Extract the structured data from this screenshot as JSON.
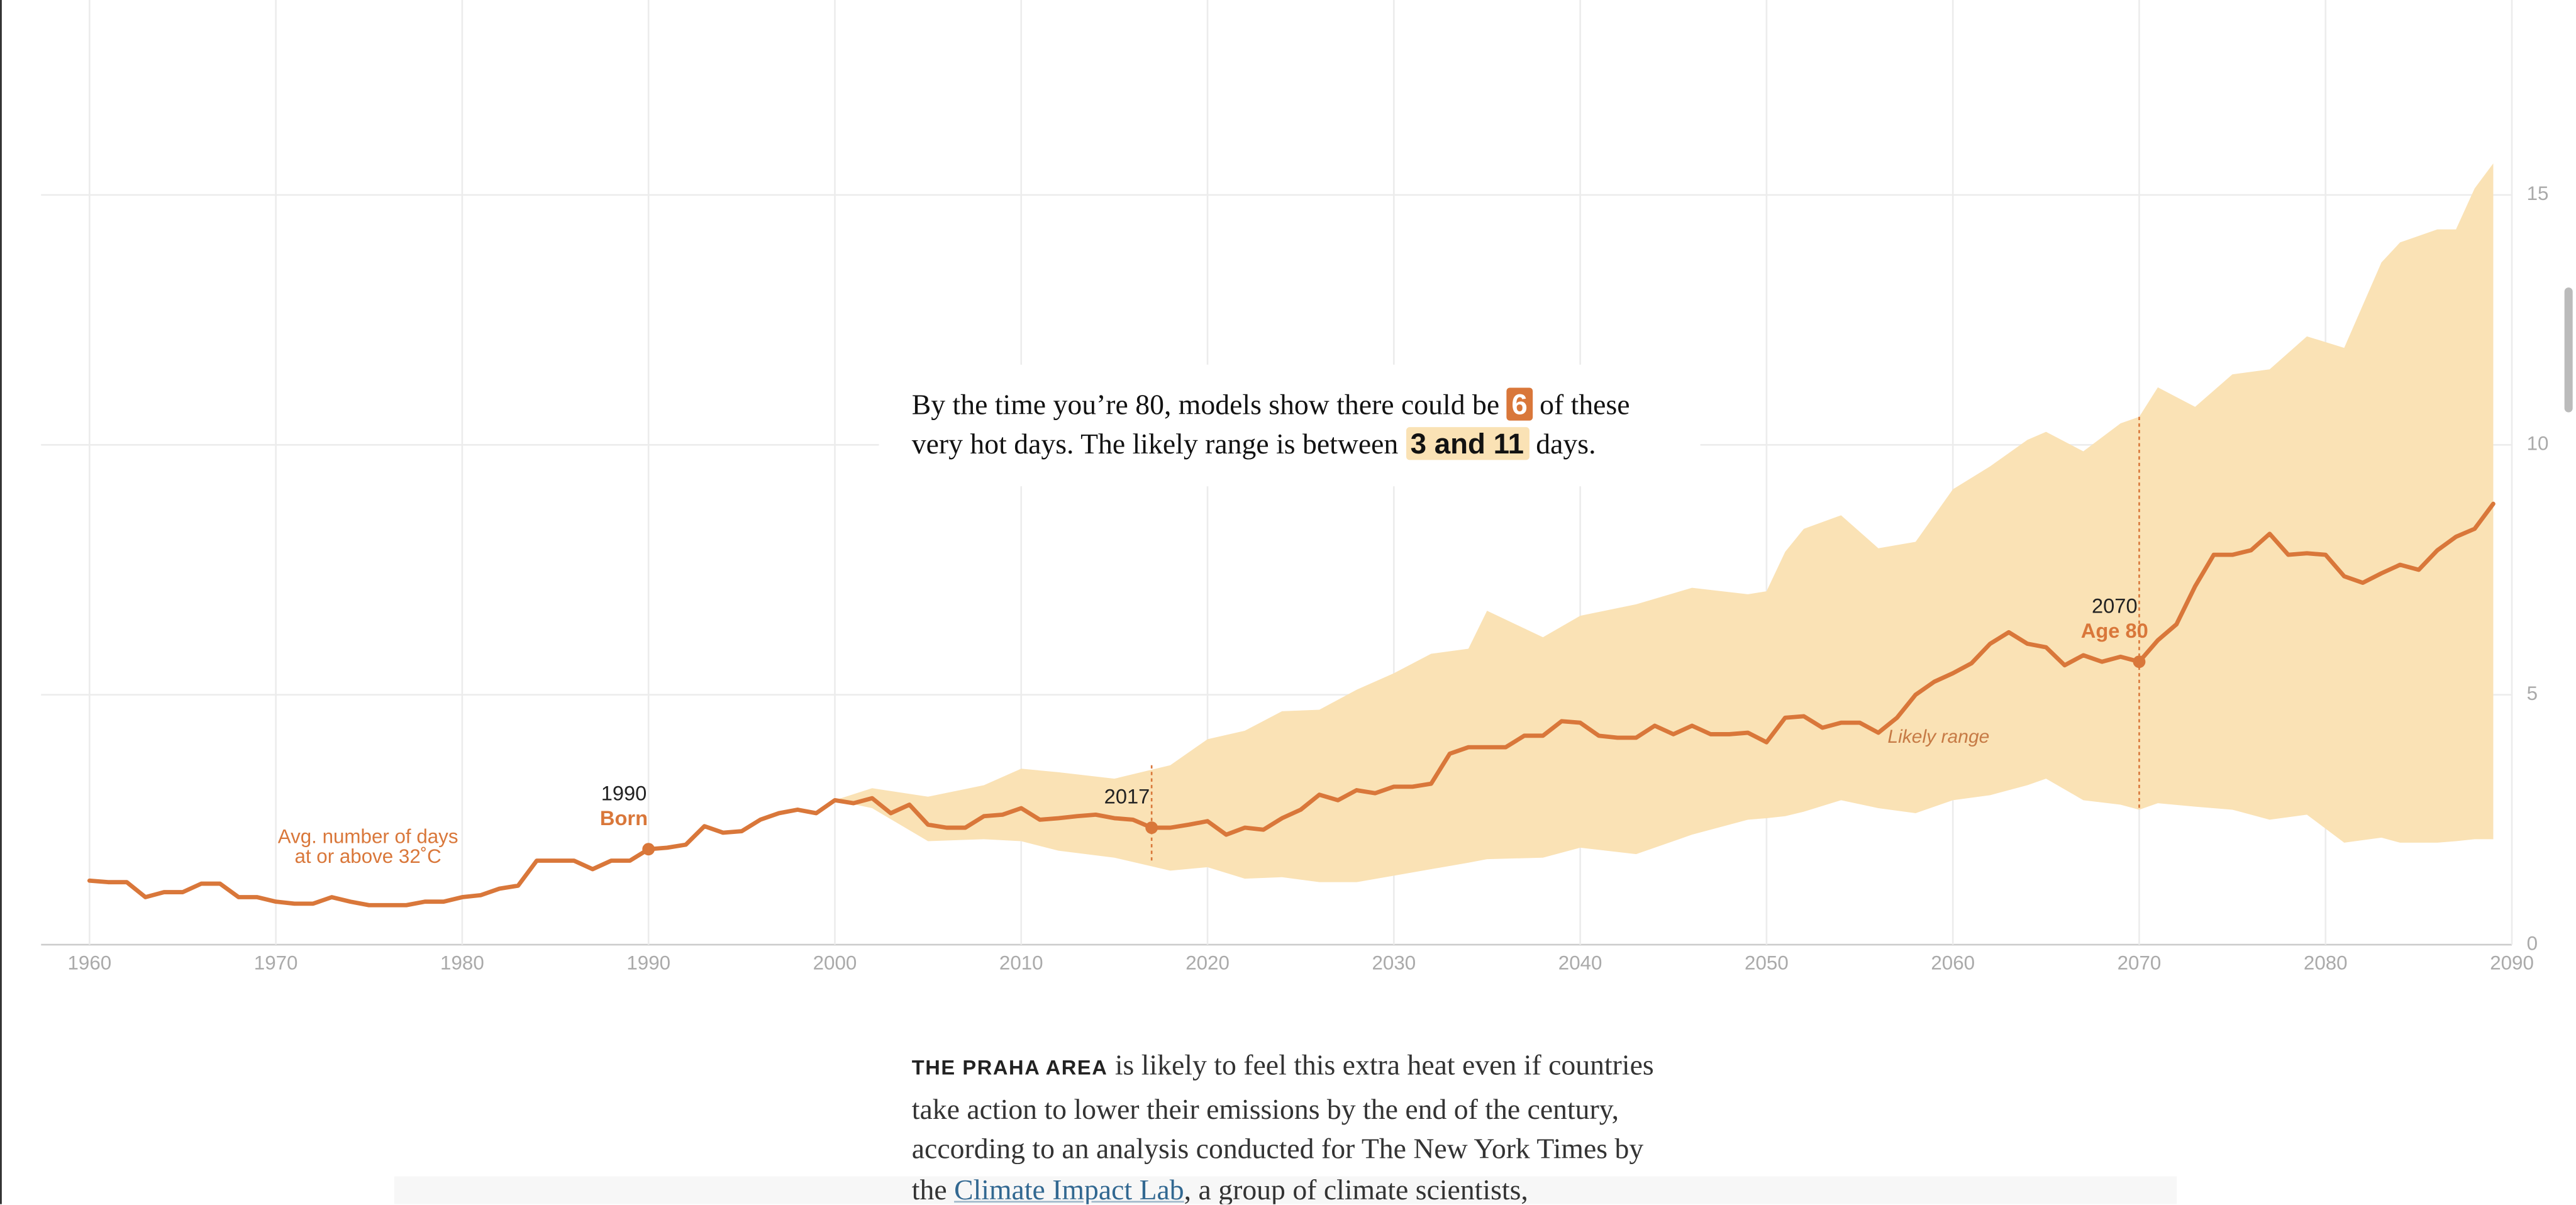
{
  "chart_data": {
    "type": "line",
    "color": "#d9773a",
    "band_color": "#fae2b5",
    "grid": true,
    "xlim": [
      1957.4,
      2090
    ],
    "ylim": [
      0,
      18.9
    ],
    "xticks": [
      1960,
      1970,
      1980,
      1990,
      2000,
      2010,
      2020,
      2030,
      2040,
      2050,
      2060,
      2070,
      2080,
      2090
    ],
    "yticks": [
      0,
      5,
      10,
      15
    ],
    "x": [
      1960,
      1961,
      1962,
      1963,
      1964,
      1965,
      1966,
      1967,
      1968,
      1969,
      1970,
      1971,
      1972,
      1973,
      1974,
      1975,
      1976,
      1977,
      1978,
      1979,
      1980,
      1981,
      1982,
      1983,
      1984,
      1985,
      1986,
      1987,
      1988,
      1989,
      1990,
      1991,
      1992,
      1993,
      1994,
      1995,
      1996,
      1997,
      1998,
      1999,
      2000,
      2001,
      2002,
      2003,
      2004,
      2005,
      2006,
      2007,
      2008,
      2009,
      2010,
      2011,
      2012,
      2013,
      2014,
      2015,
      2016,
      2017,
      2018,
      2019,
      2020,
      2021,
      2022,
      2023,
      2024,
      2025,
      2026,
      2027,
      2028,
      2029,
      2030,
      2031,
      2032,
      2033,
      2034,
      2035,
      2036,
      2037,
      2038,
      2039,
      2040,
      2041,
      2042,
      2043,
      2044,
      2045,
      2046,
      2047,
      2048,
      2049,
      2050,
      2051,
      2052,
      2053,
      2054,
      2055,
      2056,
      2057,
      2058,
      2059,
      2060,
      2061,
      2062,
      2063,
      2064,
      2065,
      2066,
      2067,
      2068,
      2069,
      2070,
      2071,
      2072,
      2073,
      2074,
      2075,
      2076,
      2077,
      2078,
      2079,
      2080,
      2081,
      2082,
      2083,
      2084,
      2085,
      2086,
      2087,
      2088,
      2089
    ],
    "values": [
      1.28,
      1.25,
      1.25,
      0.95,
      1.05,
      1.05,
      1.22,
      1.22,
      0.95,
      0.95,
      0.86,
      0.82,
      0.82,
      0.95,
      0.86,
      0.79,
      0.79,
      0.79,
      0.86,
      0.86,
      0.95,
      0.99,
      1.12,
      1.18,
      1.68,
      1.68,
      1.68,
      1.51,
      1.68,
      1.68,
      1.91,
      1.94,
      2.0,
      2.37,
      2.24,
      2.27,
      2.5,
      2.63,
      2.7,
      2.63,
      2.89,
      2.83,
      2.93,
      2.63,
      2.8,
      2.4,
      2.34,
      2.34,
      2.57,
      2.6,
      2.73,
      2.5,
      2.53,
      2.57,
      2.6,
      2.53,
      2.5,
      2.34,
      2.34,
      2.4,
      2.47,
      2.2,
      2.34,
      2.3,
      2.53,
      2.7,
      3.0,
      2.89,
      3.09,
      3.03,
      3.16,
      3.16,
      3.22,
      3.82,
      3.95,
      3.95,
      3.95,
      4.18,
      4.18,
      4.47,
      4.44,
      4.18,
      4.14,
      4.14,
      4.38,
      4.21,
      4.38,
      4.21,
      4.21,
      4.24,
      4.05,
      4.54,
      4.57,
      4.34,
      4.44,
      4.44,
      4.24,
      4.54,
      5.0,
      5.26,
      5.43,
      5.63,
      6.02,
      6.25,
      6.02,
      5.95,
      5.59,
      5.79,
      5.66,
      5.76,
      5.66,
      6.09,
      6.41,
      7.17,
      7.8,
      7.8,
      7.89,
      8.22,
      7.8,
      7.83,
      7.8,
      7.37,
      7.24,
      7.43,
      7.6,
      7.5,
      7.89,
      8.16,
      8.32,
      8.82
    ],
    "band": {
      "label": "Likely range",
      "x": [
        2000,
        2002,
        2005,
        2008,
        2010,
        2012,
        2015,
        2018,
        2020,
        2022,
        2024,
        2026,
        2028,
        2030,
        2032,
        2034,
        2035,
        2038,
        2040,
        2043,
        2046,
        2049,
        2050,
        2051,
        2052,
        2054,
        2056,
        2058,
        2060,
        2062,
        2064,
        2065,
        2067,
        2069,
        2070,
        2071,
        2073,
        2075,
        2077,
        2079,
        2081,
        2083,
        2084,
        2086,
        2087,
        2088,
        2089
      ],
      "high": [
        2.89,
        3.13,
        2.96,
        3.19,
        3.52,
        3.45,
        3.32,
        3.59,
        4.11,
        4.28,
        4.67,
        4.7,
        5.1,
        5.43,
        5.82,
        5.92,
        6.68,
        6.15,
        6.58,
        6.81,
        7.14,
        7.01,
        7.07,
        7.86,
        8.32,
        8.59,
        7.93,
        8.06,
        9.11,
        9.57,
        10.1,
        10.26,
        9.87,
        10.43,
        10.56,
        11.15,
        10.76,
        11.41,
        11.51,
        12.17,
        11.94,
        13.65,
        14.05,
        14.31,
        14.31,
        15.13,
        15.63
      ],
      "low": [
        2.89,
        2.73,
        2.07,
        2.11,
        2.07,
        1.88,
        1.74,
        1.48,
        1.55,
        1.32,
        1.35,
        1.25,
        1.25,
        1.38,
        1.51,
        1.64,
        1.71,
        1.74,
        1.94,
        1.81,
        2.2,
        2.5,
        2.53,
        2.57,
        2.66,
        2.89,
        2.73,
        2.63,
        2.89,
        2.99,
        3.19,
        3.32,
        2.89,
        2.8,
        2.7,
        2.83,
        2.76,
        2.7,
        2.5,
        2.6,
        2.04,
        2.14,
        2.04,
        2.04,
        2.07,
        2.11,
        2.11
      ]
    },
    "line_label": [
      "Avg. number of days",
      "at or above 32˚C"
    ],
    "annotations": [
      {
        "x": 1990,
        "label": "Born"
      },
      {
        "x": 2017
      },
      {
        "x": 2070,
        "label": "Age 80"
      }
    ],
    "callout": [
      "By the time you’re 80, models show there could be ",
      "6",
      " of these very hot days. The likely range is between ",
      "3 and 11",
      " days."
    ]
  },
  "article": {
    "kicker": "THE PRAHA AREA",
    "parts": [
      " is likely to feel this extra heat even if countries take action to lower their emissions by the end of the century, according to an analysis conducted for The New York Times by the ",
      "Climate Impact Lab",
      ", a group of climate scientists,"
    ]
  }
}
